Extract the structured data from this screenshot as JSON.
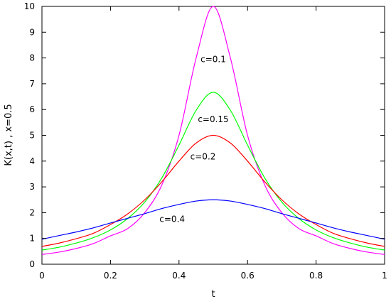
{
  "chart_data": {
    "type": "line",
    "xlabel": "t",
    "ylabel": "K(x,t)  ,   x=0.5",
    "xlim": [
      0,
      1
    ],
    "ylim": [
      0,
      10
    ],
    "x_ticks": [
      0,
      0.2,
      0.4,
      0.6,
      0.8,
      1
    ],
    "x_tick_labels": [
      "0",
      "0.2",
      "0.4",
      "0.6",
      "0.8",
      "1"
    ],
    "y_ticks": [
      0,
      1,
      2,
      3,
      4,
      5,
      6,
      7,
      8,
      9,
      10
    ],
    "y_tick_labels": [
      "0",
      "1",
      "2",
      "3",
      "4",
      "5",
      "6",
      "7",
      "8",
      "9",
      "10"
    ],
    "grid": false,
    "series": [
      {
        "name": "c=0.1",
        "color": "#ff00ff",
        "x": [
          0,
          0.05,
          0.1,
          0.15,
          0.2,
          0.25,
          0.3,
          0.35,
          0.4,
          0.45,
          0.5,
          0.55,
          0.6,
          0.65,
          0.7,
          0.75,
          0.8,
          0.85,
          0.9,
          0.95,
          1
        ],
        "y": [
          0.38,
          0.47,
          0.61,
          0.8,
          1.1,
          1.38,
          2.0,
          3.08,
          5.0,
          8.0,
          10.0,
          8.0,
          5.0,
          3.08,
          2.0,
          1.38,
          1.1,
          0.8,
          0.61,
          0.47,
          0.38
        ]
      },
      {
        "name": "c=0.15",
        "color": "#00ff00",
        "x": [
          0,
          0.05,
          0.1,
          0.15,
          0.2,
          0.25,
          0.3,
          0.35,
          0.4,
          0.45,
          0.5,
          0.55,
          0.6,
          0.65,
          0.7,
          0.75,
          0.8,
          0.85,
          0.9,
          0.95,
          1
        ],
        "y": [
          0.55,
          0.66,
          0.82,
          1.03,
          1.33,
          1.77,
          2.41,
          3.35,
          4.62,
          5.97,
          6.67,
          5.97,
          4.62,
          3.35,
          2.41,
          1.77,
          1.33,
          1.03,
          0.82,
          0.66,
          0.55
        ]
      },
      {
        "name": "c=0.2",
        "color": "#ff0000",
        "x": [
          0,
          0.05,
          0.1,
          0.15,
          0.2,
          0.25,
          0.3,
          0.35,
          0.4,
          0.45,
          0.5,
          0.55,
          0.6,
          0.65,
          0.7,
          0.75,
          0.8,
          0.85,
          0.9,
          0.95,
          1
        ],
        "y": [
          0.69,
          0.82,
          0.99,
          1.2,
          1.54,
          1.95,
          2.5,
          3.2,
          4.0,
          4.7,
          5.0,
          4.7,
          4.0,
          3.2,
          2.5,
          1.95,
          1.54,
          1.2,
          0.99,
          0.82,
          0.69
        ]
      },
      {
        "name": "c=0.4",
        "color": "#0000ff",
        "x": [
          0,
          0.05,
          0.1,
          0.15,
          0.2,
          0.25,
          0.3,
          0.35,
          0.4,
          0.45,
          0.5,
          0.55,
          0.6,
          0.65,
          0.7,
          0.75,
          0.8,
          0.85,
          0.9,
          0.95,
          1
        ],
        "y": [
          0.97,
          1.11,
          1.25,
          1.41,
          1.6,
          1.78,
          1.96,
          2.16,
          2.32,
          2.45,
          2.5,
          2.45,
          2.32,
          2.16,
          1.96,
          1.78,
          1.6,
          1.41,
          1.25,
          1.11,
          0.97
        ]
      }
    ],
    "annotations": [
      {
        "text": "c=0.1",
        "series": "c=0.1",
        "x": 0.5,
        "y": 7.95
      },
      {
        "text": "c=0.15",
        "series": "c=0.15",
        "x": 0.5,
        "y": 5.62
      },
      {
        "text": "c=0.2",
        "series": "c=0.2",
        "x": 0.47,
        "y": 4.17
      },
      {
        "text": "c=0.4",
        "series": "c=0.4",
        "x": 0.38,
        "y": 1.75
      }
    ]
  }
}
